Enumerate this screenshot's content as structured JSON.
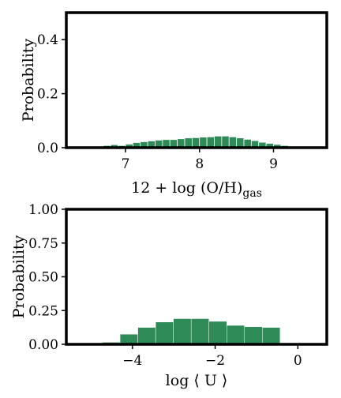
{
  "chart_data": [
    {
      "type": "bar",
      "title": "",
      "xlabel": "12 + log (O/H)",
      "xlabel_sub": "gas",
      "ylabel": "Probability",
      "xlim": [
        6.2,
        9.72
      ],
      "ylim": [
        0,
        0.5
      ],
      "xticks": [
        7,
        8,
        9
      ],
      "yticks": [
        0.0,
        0.2,
        0.4
      ],
      "xtick_labels": [
        "7",
        "8",
        "9"
      ],
      "ytick_labels": [
        "0.0",
        "0.2",
        "0.4"
      ],
      "bar_color": "#2e8b57",
      "bin_width": 0.1,
      "bins": [
        {
          "x": 6.5,
          "value": 0.001
        },
        {
          "x": 6.6,
          "value": 0.003
        },
        {
          "x": 6.7,
          "value": 0.008
        },
        {
          "x": 6.8,
          "value": 0.011
        },
        {
          "x": 6.9,
          "value": 0.008
        },
        {
          "x": 7.0,
          "value": 0.013
        },
        {
          "x": 7.1,
          "value": 0.019
        },
        {
          "x": 7.2,
          "value": 0.022
        },
        {
          "x": 7.3,
          "value": 0.025
        },
        {
          "x": 7.4,
          "value": 0.028
        },
        {
          "x": 7.5,
          "value": 0.03
        },
        {
          "x": 7.6,
          "value": 0.03
        },
        {
          "x": 7.7,
          "value": 0.033
        },
        {
          "x": 7.8,
          "value": 0.036
        },
        {
          "x": 7.9,
          "value": 0.037
        },
        {
          "x": 8.0,
          "value": 0.039
        },
        {
          "x": 8.1,
          "value": 0.04
        },
        {
          "x": 8.2,
          "value": 0.043
        },
        {
          "x": 8.3,
          "value": 0.043
        },
        {
          "x": 8.4,
          "value": 0.04
        },
        {
          "x": 8.5,
          "value": 0.036
        },
        {
          "x": 8.6,
          "value": 0.031
        },
        {
          "x": 8.7,
          "value": 0.026
        },
        {
          "x": 8.8,
          "value": 0.02
        },
        {
          "x": 8.9,
          "value": 0.016
        },
        {
          "x": 9.0,
          "value": 0.012
        },
        {
          "x": 9.1,
          "value": 0.008
        },
        {
          "x": 9.2,
          "value": 0.005
        },
        {
          "x": 9.3,
          "value": 0.002
        }
      ]
    },
    {
      "type": "bar",
      "title": "",
      "xlabel": "log ⟨ U ⟩",
      "ylabel": "Probability",
      "xlim": [
        -5.6,
        0.7
      ],
      "ylim": [
        0,
        1.0
      ],
      "xticks": [
        -4,
        -2,
        0
      ],
      "yticks": [
        0.0,
        0.25,
        0.5,
        0.75,
        1.0
      ],
      "xtick_labels": [
        "−4",
        "−2",
        "0"
      ],
      "ytick_labels": [
        "0.00",
        "0.25",
        "0.50",
        "0.75",
        "1.00"
      ],
      "bar_color": "#2e8b57",
      "bin_width": 0.43,
      "bins": [
        {
          "x": -5.16,
          "value": 0.003
        },
        {
          "x": -4.73,
          "value": 0.015
        },
        {
          "x": -4.3,
          "value": 0.075
        },
        {
          "x": -3.87,
          "value": 0.125
        },
        {
          "x": -3.44,
          "value": 0.165
        },
        {
          "x": -3.01,
          "value": 0.19
        },
        {
          "x": -2.58,
          "value": 0.19
        },
        {
          "x": -2.15,
          "value": 0.17
        },
        {
          "x": -1.72,
          "value": 0.14
        },
        {
          "x": -1.29,
          "value": 0.13
        },
        {
          "x": -0.86,
          "value": 0.125
        }
      ]
    }
  ]
}
